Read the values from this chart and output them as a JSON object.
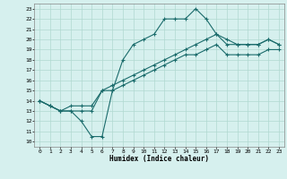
{
  "xlabel": "Humidex (Indice chaleur)",
  "xlim": [
    -0.5,
    23.5
  ],
  "ylim": [
    9.5,
    23.5
  ],
  "xticks": [
    0,
    1,
    2,
    3,
    4,
    5,
    6,
    7,
    8,
    9,
    10,
    11,
    12,
    13,
    14,
    15,
    16,
    17,
    18,
    19,
    20,
    21,
    22,
    23
  ],
  "yticks": [
    10,
    11,
    12,
    13,
    14,
    15,
    16,
    17,
    18,
    19,
    20,
    21,
    22,
    23
  ],
  "bg_color": "#d6f0ee",
  "grid_color": "#b0d8d0",
  "line_color": "#1a6b6b",
  "line1_x": [
    0,
    1,
    2,
    3,
    4,
    5,
    6,
    7,
    8,
    9,
    10,
    11,
    12,
    13,
    14,
    15,
    16,
    17,
    18,
    19,
    20,
    21,
    22,
    23
  ],
  "line1_y": [
    14.0,
    13.5,
    13.0,
    13.0,
    12.0,
    10.5,
    10.5,
    15.0,
    18.0,
    19.5,
    20.0,
    20.5,
    22.0,
    22.0,
    22.0,
    23.0,
    22.0,
    20.5,
    19.5,
    19.5,
    19.5,
    19.5,
    20.0,
    19.5
  ],
  "line2_x": [
    0,
    1,
    2,
    3,
    4,
    5,
    6,
    7,
    8,
    9,
    10,
    11,
    12,
    13,
    14,
    15,
    16,
    17,
    18,
    19,
    20,
    21,
    22,
    23
  ],
  "line2_y": [
    14.0,
    13.5,
    13.0,
    13.5,
    13.5,
    13.5,
    15.0,
    15.5,
    16.0,
    16.5,
    17.0,
    17.5,
    18.0,
    18.5,
    19.0,
    19.5,
    20.0,
    20.5,
    20.0,
    19.5,
    19.5,
    19.5,
    20.0,
    19.5
  ],
  "line3_x": [
    0,
    1,
    2,
    3,
    4,
    5,
    6,
    7,
    8,
    9,
    10,
    11,
    12,
    13,
    14,
    15,
    16,
    17,
    18,
    19,
    20,
    21,
    22,
    23
  ],
  "line3_y": [
    14.0,
    13.5,
    13.0,
    13.0,
    13.0,
    13.0,
    15.0,
    15.0,
    15.5,
    16.0,
    16.5,
    17.0,
    17.5,
    18.0,
    18.5,
    18.5,
    19.0,
    19.5,
    18.5,
    18.5,
    18.5,
    18.5,
    19.0,
    19.0
  ]
}
